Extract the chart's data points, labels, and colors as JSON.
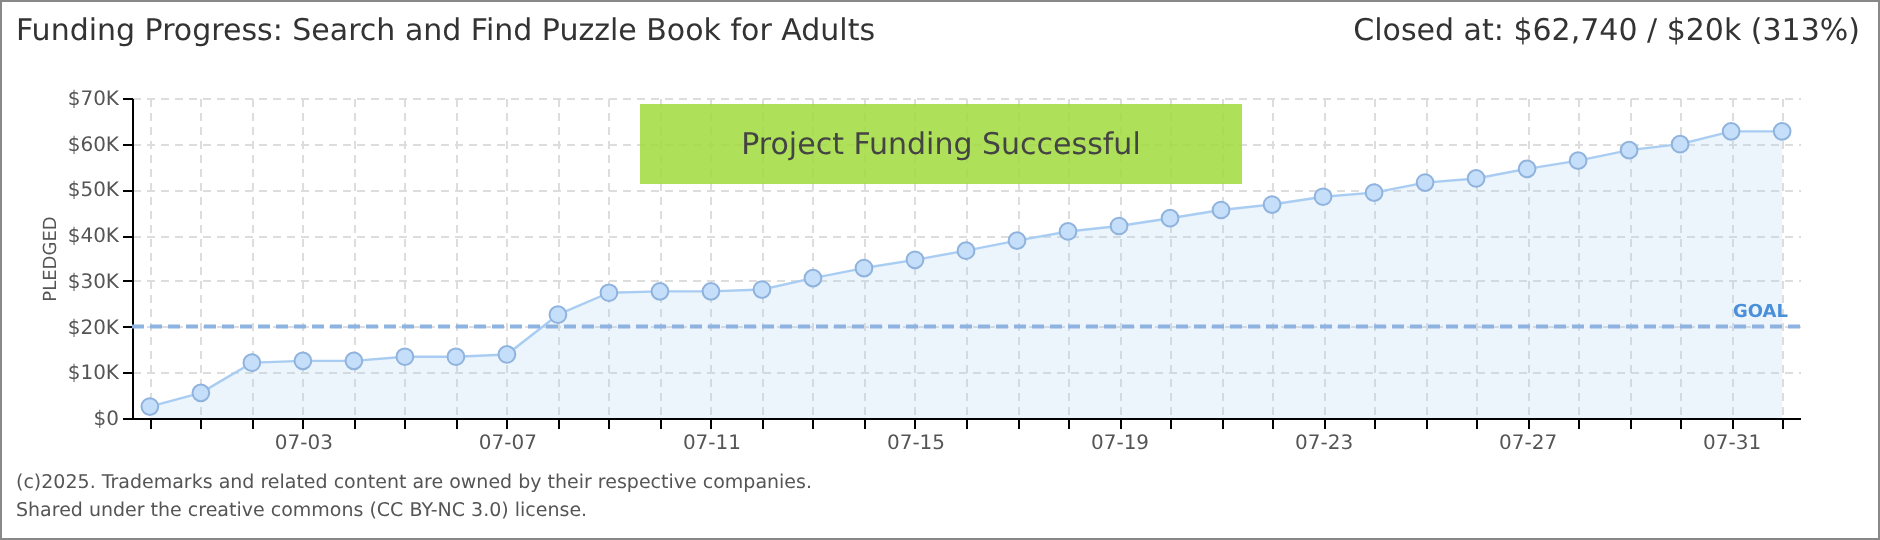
{
  "chart_data": {
    "type": "area",
    "title": "Funding Progress: Search and Find Puzzle Book for Adults",
    "ylabel": "PLEDGED",
    "categories": [
      null,
      null,
      null,
      "07-03",
      null,
      null,
      null,
      "07-07",
      null,
      null,
      null,
      "07-11",
      null,
      null,
      null,
      "07-15",
      null,
      null,
      null,
      "07-19",
      null,
      null,
      null,
      "07-23",
      null,
      null,
      null,
      "07-27",
      null,
      null,
      null,
      "07-31",
      null
    ],
    "series": [
      {
        "color": "#a9cdf2",
        "values": [
          2500,
          5500,
          12100,
          12500,
          12500,
          13400,
          13400,
          13900,
          22600,
          27400,
          27700,
          27700,
          28100,
          30600,
          32800,
          34600,
          36600,
          38800,
          40800,
          42000,
          43700,
          45500,
          46700,
          48400,
          49300,
          51500,
          52400,
          54500,
          56300,
          58600,
          59900,
          62700,
          62700
        ]
      }
    ],
    "ylim": [
      0,
      70000
    ],
    "yticks": [
      {
        "value": 0,
        "label": "$0"
      },
      {
        "value": 10000,
        "label": "$10K"
      },
      {
        "value": 20000,
        "label": "$20K"
      },
      {
        "value": 30000,
        "label": "$30K"
      },
      {
        "value": 40000,
        "label": "$40K"
      },
      {
        "value": 50000,
        "label": "$50K"
      },
      {
        "value": 60000,
        "label": "$60K"
      },
      {
        "value": 70000,
        "label": "$70K"
      }
    ],
    "ref_lines": [
      {
        "axis": "y",
        "value": 20000,
        "label": "GOAL",
        "color": "#8fb3e0",
        "line_style": "dashed"
      }
    ],
    "grid": true,
    "marker": "circle",
    "line_style": "solid",
    "annotations": [
      "Project Funding Successful",
      "Closed at: $62,740 / $20k (313%)",
      "(c)2025. Trademarks and related content are owned by their respective companies.",
      "Shared under the creative commons (CC BY-NC 3.0) license."
    ]
  }
}
